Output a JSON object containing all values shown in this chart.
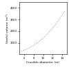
{
  "title": "",
  "xlabel": "Crucible diameter (m)",
  "ylabel": "Useful volume (m³)",
  "xlim": [
    5,
    15
  ],
  "ylim": [
    0,
    4500
  ],
  "xticks": [
    6,
    8,
    10,
    12,
    14
  ],
  "yticks": [
    1000,
    2000,
    3000,
    4000
  ],
  "x_start": 5.5,
  "x_end": 14.5,
  "curve_color": "#999999",
  "background_color": "#ffffff",
  "y_at_xstart": 300,
  "y_at_xend": 3700
}
